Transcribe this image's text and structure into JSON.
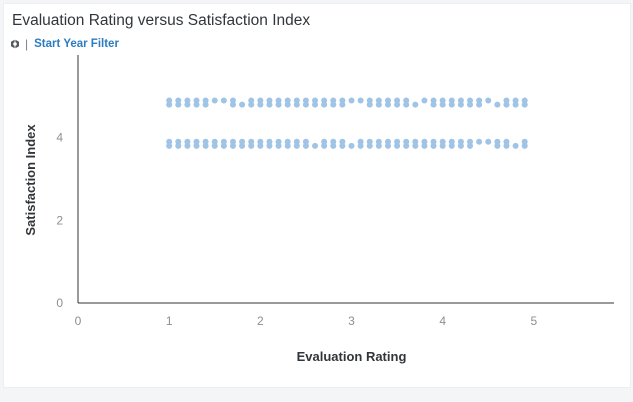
{
  "title": "Evaluation Rating versus Satisfaction Index",
  "filter": {
    "label": "Start Year Filter",
    "icon": "filter-settings-icon",
    "separator": "|"
  },
  "colors": {
    "point": "#9fc4e6",
    "axis": "#32363a",
    "link": "#2b7cc0"
  },
  "chart_data": {
    "type": "scatter",
    "title": "Evaluation Rating versus Satisfaction Index",
    "xlabel": "Evaluation Rating",
    "ylabel": "Satisfaction Index",
    "xlim": [
      0,
      6
    ],
    "ylim": [
      0,
      6
    ],
    "xticks": [
      "0",
      "1",
      "2",
      "3",
      "4",
      "5"
    ],
    "yticks": [
      "0",
      "2",
      "4"
    ],
    "grid": false,
    "series": [
      {
        "x": [
          1.0,
          1.0,
          1.1,
          1.1,
          1.2,
          1.2,
          1.3,
          1.3,
          1.4,
          1.4,
          1.5,
          1.6,
          1.7,
          1.7,
          1.8,
          1.9,
          1.9,
          2.0,
          2.0,
          2.1,
          2.1,
          2.2,
          2.2,
          2.3,
          2.3,
          2.4,
          2.4,
          2.5,
          2.5,
          2.6,
          2.6,
          2.7,
          2.7,
          2.8,
          2.8,
          2.9,
          2.9,
          3.0,
          3.1,
          3.2,
          3.2,
          3.3,
          3.3,
          3.4,
          3.4,
          3.5,
          3.5,
          3.6,
          3.6,
          3.7,
          3.8,
          3.9,
          3.9,
          4.0,
          4.0,
          4.1,
          4.1,
          4.2,
          4.2,
          4.3,
          4.3,
          4.4,
          4.4,
          4.5,
          4.6,
          4.7,
          4.7,
          4.8,
          4.8,
          4.9,
          4.9
        ],
        "y": [
          4.9,
          4.8,
          4.9,
          4.8,
          4.9,
          4.8,
          4.9,
          4.8,
          4.9,
          4.8,
          4.9,
          4.9,
          4.9,
          4.8,
          4.8,
          4.9,
          4.8,
          4.9,
          4.8,
          4.9,
          4.8,
          4.9,
          4.8,
          4.9,
          4.8,
          4.9,
          4.8,
          4.9,
          4.8,
          4.9,
          4.8,
          4.9,
          4.8,
          4.9,
          4.8,
          4.9,
          4.8,
          4.9,
          4.9,
          4.9,
          4.8,
          4.9,
          4.8,
          4.9,
          4.8,
          4.9,
          4.8,
          4.9,
          4.8,
          4.8,
          4.9,
          4.9,
          4.8,
          4.9,
          4.8,
          4.9,
          4.8,
          4.9,
          4.8,
          4.9,
          4.8,
          4.9,
          4.8,
          4.9,
          4.8,
          4.9,
          4.8,
          4.9,
          4.8,
          4.9,
          4.8
        ]
      },
      {
        "x": [
          1.0,
          1.0,
          1.1,
          1.1,
          1.2,
          1.2,
          1.3,
          1.3,
          1.4,
          1.4,
          1.5,
          1.5,
          1.6,
          1.6,
          1.7,
          1.7,
          1.8,
          1.8,
          1.9,
          1.9,
          2.0,
          2.0,
          2.1,
          2.1,
          2.2,
          2.2,
          2.3,
          2.3,
          2.4,
          2.4,
          2.5,
          2.5,
          2.6,
          2.7,
          2.7,
          2.8,
          2.8,
          2.9,
          2.9,
          3.0,
          3.1,
          3.1,
          3.2,
          3.2,
          3.3,
          3.3,
          3.4,
          3.4,
          3.5,
          3.5,
          3.6,
          3.6,
          3.7,
          3.7,
          3.8,
          3.8,
          3.9,
          3.9,
          4.0,
          4.0,
          4.1,
          4.1,
          4.2,
          4.2,
          4.3,
          4.3,
          4.4,
          4.5,
          4.6,
          4.6,
          4.7,
          4.7,
          4.8,
          4.9,
          4.9
        ],
        "y": [
          3.9,
          3.8,
          3.9,
          3.8,
          3.9,
          3.8,
          3.9,
          3.8,
          3.9,
          3.8,
          3.9,
          3.8,
          3.9,
          3.8,
          3.9,
          3.8,
          3.9,
          3.8,
          3.9,
          3.8,
          3.9,
          3.8,
          3.9,
          3.8,
          3.9,
          3.8,
          3.9,
          3.8,
          3.9,
          3.8,
          3.9,
          3.8,
          3.8,
          3.9,
          3.8,
          3.9,
          3.8,
          3.9,
          3.8,
          3.8,
          3.9,
          3.8,
          3.9,
          3.8,
          3.9,
          3.8,
          3.9,
          3.8,
          3.9,
          3.8,
          3.9,
          3.8,
          3.9,
          3.8,
          3.9,
          3.8,
          3.9,
          3.8,
          3.9,
          3.8,
          3.9,
          3.8,
          3.9,
          3.8,
          3.9,
          3.8,
          3.9,
          3.9,
          3.9,
          3.8,
          3.9,
          3.8,
          3.8,
          3.9,
          3.8
        ]
      }
    ]
  }
}
